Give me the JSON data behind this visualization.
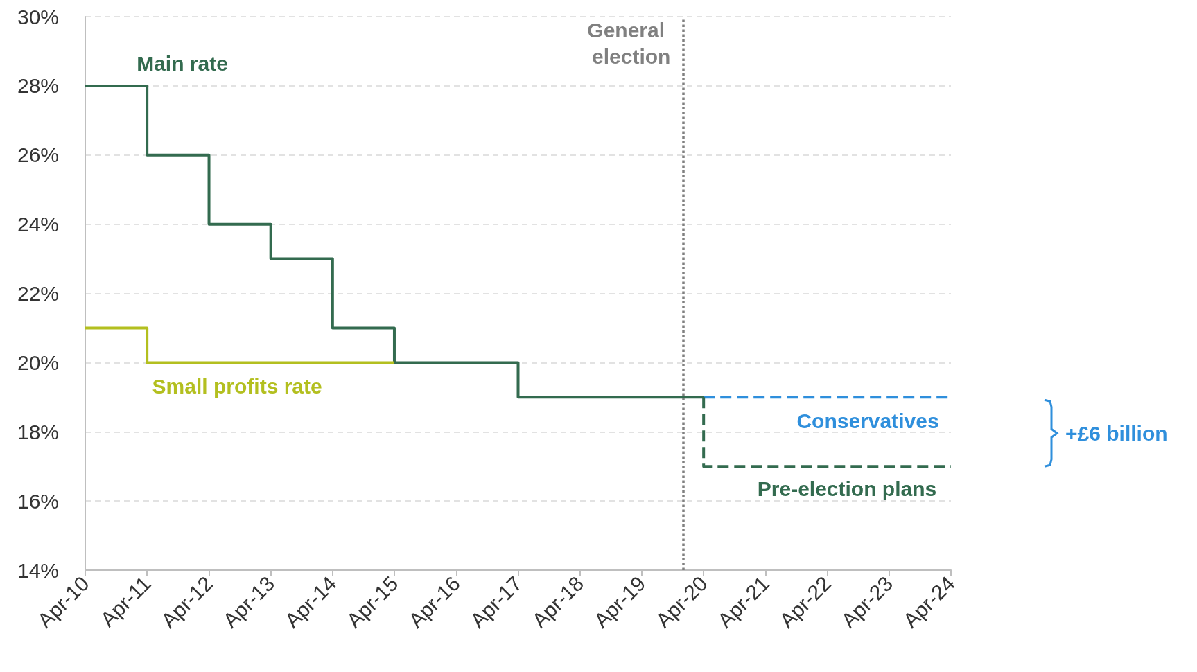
{
  "chart_data": {
    "type": "step",
    "x": [
      "2010-04",
      "2011-04",
      "2012-04",
      "2013-04",
      "2014-04",
      "2015-04",
      "2016-04",
      "2017-04",
      "2018-04",
      "2019-04",
      "2020-04"
    ],
    "series": [
      {
        "name": "Main rate",
        "color": "#336b4f",
        "values": [
          28,
          26,
          24,
          23,
          21,
          20,
          20,
          19,
          19,
          19,
          19
        ]
      },
      {
        "name": "Small profits rate",
        "color": "#b3bf1f",
        "x": [
          "2010-04",
          "2011-04",
          "2012-04",
          "2013-04",
          "2014-04",
          "2015-04"
        ],
        "values": [
          21,
          20,
          20,
          20,
          20,
          20
        ]
      },
      {
        "name": "Conservatives",
        "color": "#2f8fdc",
        "x": [
          "2020-04",
          "2024-04"
        ],
        "values": [
          19,
          19
        ],
        "line_style": "dashed"
      },
      {
        "name": "Pre-election plans",
        "color": "#336b4f",
        "x": [
          "2020-04",
          "2020-04",
          "2024-04"
        ],
        "values": [
          19,
          17,
          17
        ],
        "line_style": "dashed"
      }
    ],
    "xlim": [
      "2010-04",
      "2024-04"
    ],
    "xticks": [
      {
        "value": "2010-04",
        "label": "Apr-10"
      },
      {
        "value": "2011-04",
        "label": "Apr-11"
      },
      {
        "value": "2012-04",
        "label": "Apr-12"
      },
      {
        "value": "2013-04",
        "label": "Apr-13"
      },
      {
        "value": "2014-04",
        "label": "Apr-14"
      },
      {
        "value": "2015-04",
        "label": "Apr-15"
      },
      {
        "value": "2016-04",
        "label": "Apr-16"
      },
      {
        "value": "2017-04",
        "label": "Apr-17"
      },
      {
        "value": "2018-04",
        "label": "Apr-18"
      },
      {
        "value": "2019-04",
        "label": "Apr-19"
      },
      {
        "value": "2020-04",
        "label": "Apr-20"
      },
      {
        "value": "2021-04",
        "label": "Apr-21"
      },
      {
        "value": "2022-04",
        "label": "Apr-22"
      },
      {
        "value": "2023-04",
        "label": "Apr-23"
      },
      {
        "value": "2024-04",
        "label": "Apr-24"
      }
    ],
    "ylim": [
      14,
      30
    ],
    "yticks": [
      {
        "value": 14,
        "label": "14%"
      },
      {
        "value": 16,
        "label": "16%"
      },
      {
        "value": 18,
        "label": "18%"
      },
      {
        "value": 20,
        "label": "20%"
      },
      {
        "value": 22,
        "label": "22%"
      },
      {
        "value": 24,
        "label": "24%"
      },
      {
        "value": 26,
        "label": "26%"
      },
      {
        "value": 28,
        "label": "28%"
      },
      {
        "value": 30,
        "label": "30%"
      }
    ],
    "grid": "y",
    "line_style": "solid",
    "marker": "none",
    "legend": false,
    "ref_lines": [
      {
        "axis": "x",
        "value": "2019-12",
        "label": "General election",
        "color": "#808080",
        "line_style": "dotted"
      }
    ],
    "annotations": [
      "+£6 billion"
    ]
  }
}
